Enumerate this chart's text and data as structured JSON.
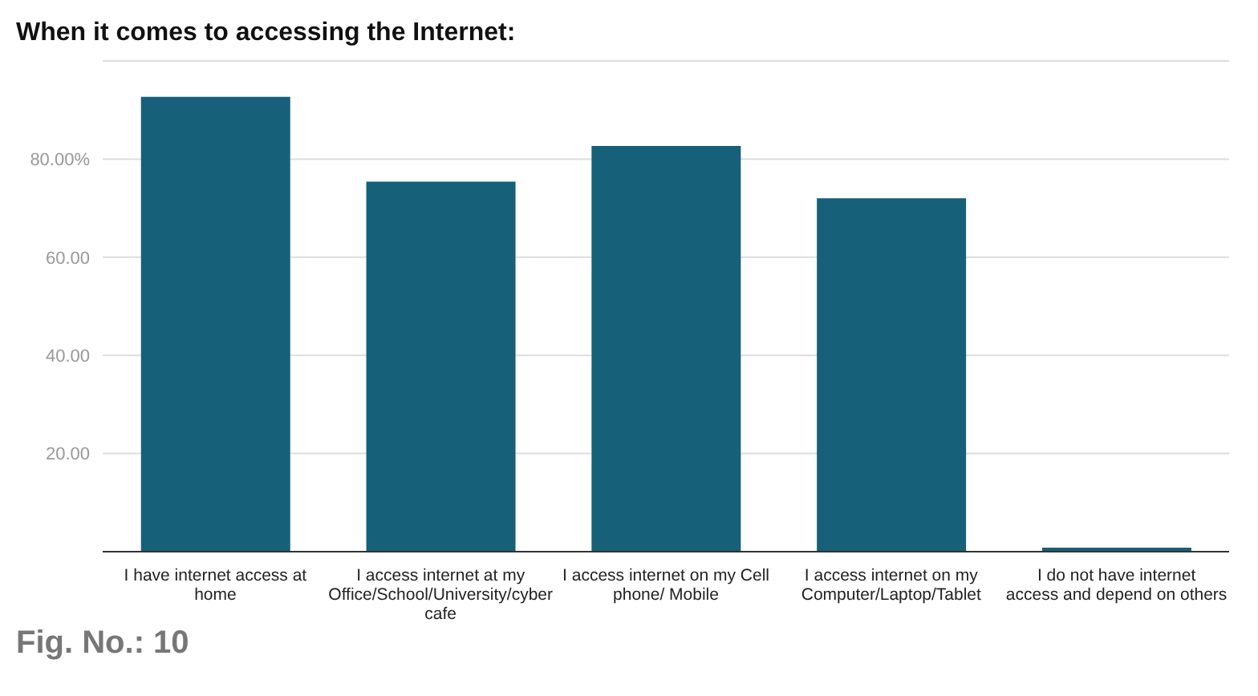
{
  "chart_data": {
    "type": "bar",
    "title": "When it comes to accessing the Internet:",
    "categories": [
      "I have internet access at home",
      "I access internet at my Office/School/University/cyber cafe",
      "I access internet on my Cell phone/ Mobile",
      "I access internet on my Computer/Laptop/Tablet",
      "I do not have internet access and depend on others"
    ],
    "values": [
      92.7,
      75.4,
      82.7,
      72.0,
      0.8
    ],
    "color": "#176079",
    "ylim": [
      0,
      100
    ],
    "yticks": [
      {
        "value": 0,
        "label": null
      },
      {
        "value": 20,
        "label": "20.00"
      },
      {
        "value": 40,
        "label": "40.00"
      },
      {
        "value": 60,
        "label": "60.00"
      },
      {
        "value": 80,
        "label": "80.00%"
      }
    ],
    "grid": "y",
    "annotations": [
      "Fig. No.: 10"
    ]
  }
}
